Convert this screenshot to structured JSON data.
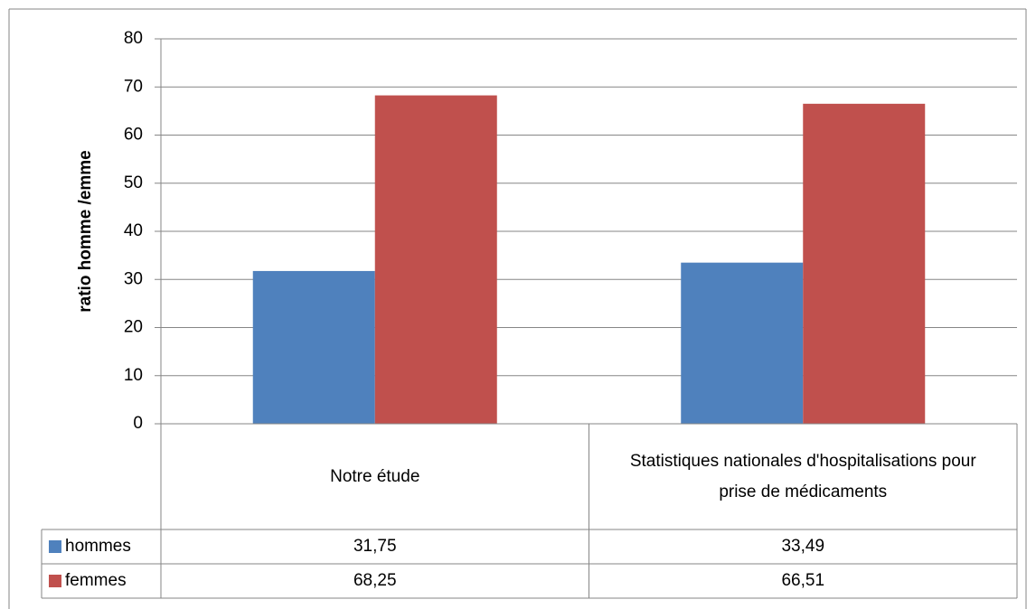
{
  "chart_data": {
    "type": "bar",
    "y_label": "ratio homme /emme",
    "categories": [
      "Notre étude",
      "Statistiques nationales d'hospitalisations pour prise de médicaments"
    ],
    "series": [
      {
        "name": "hommes",
        "color": "#4f81bd",
        "values": [
          31.75,
          33.49
        ],
        "value_labels": [
          "31,75",
          "33,49"
        ]
      },
      {
        "name": "femmes",
        "color": "#c0504d",
        "values": [
          68.25,
          66.51
        ],
        "value_labels": [
          "68,25",
          "66,51"
        ]
      }
    ],
    "ylim": [
      0,
      80
    ],
    "yticks": [
      0,
      10,
      20,
      30,
      40,
      50,
      60,
      70,
      80
    ],
    "grid": true,
    "data_table": true
  }
}
